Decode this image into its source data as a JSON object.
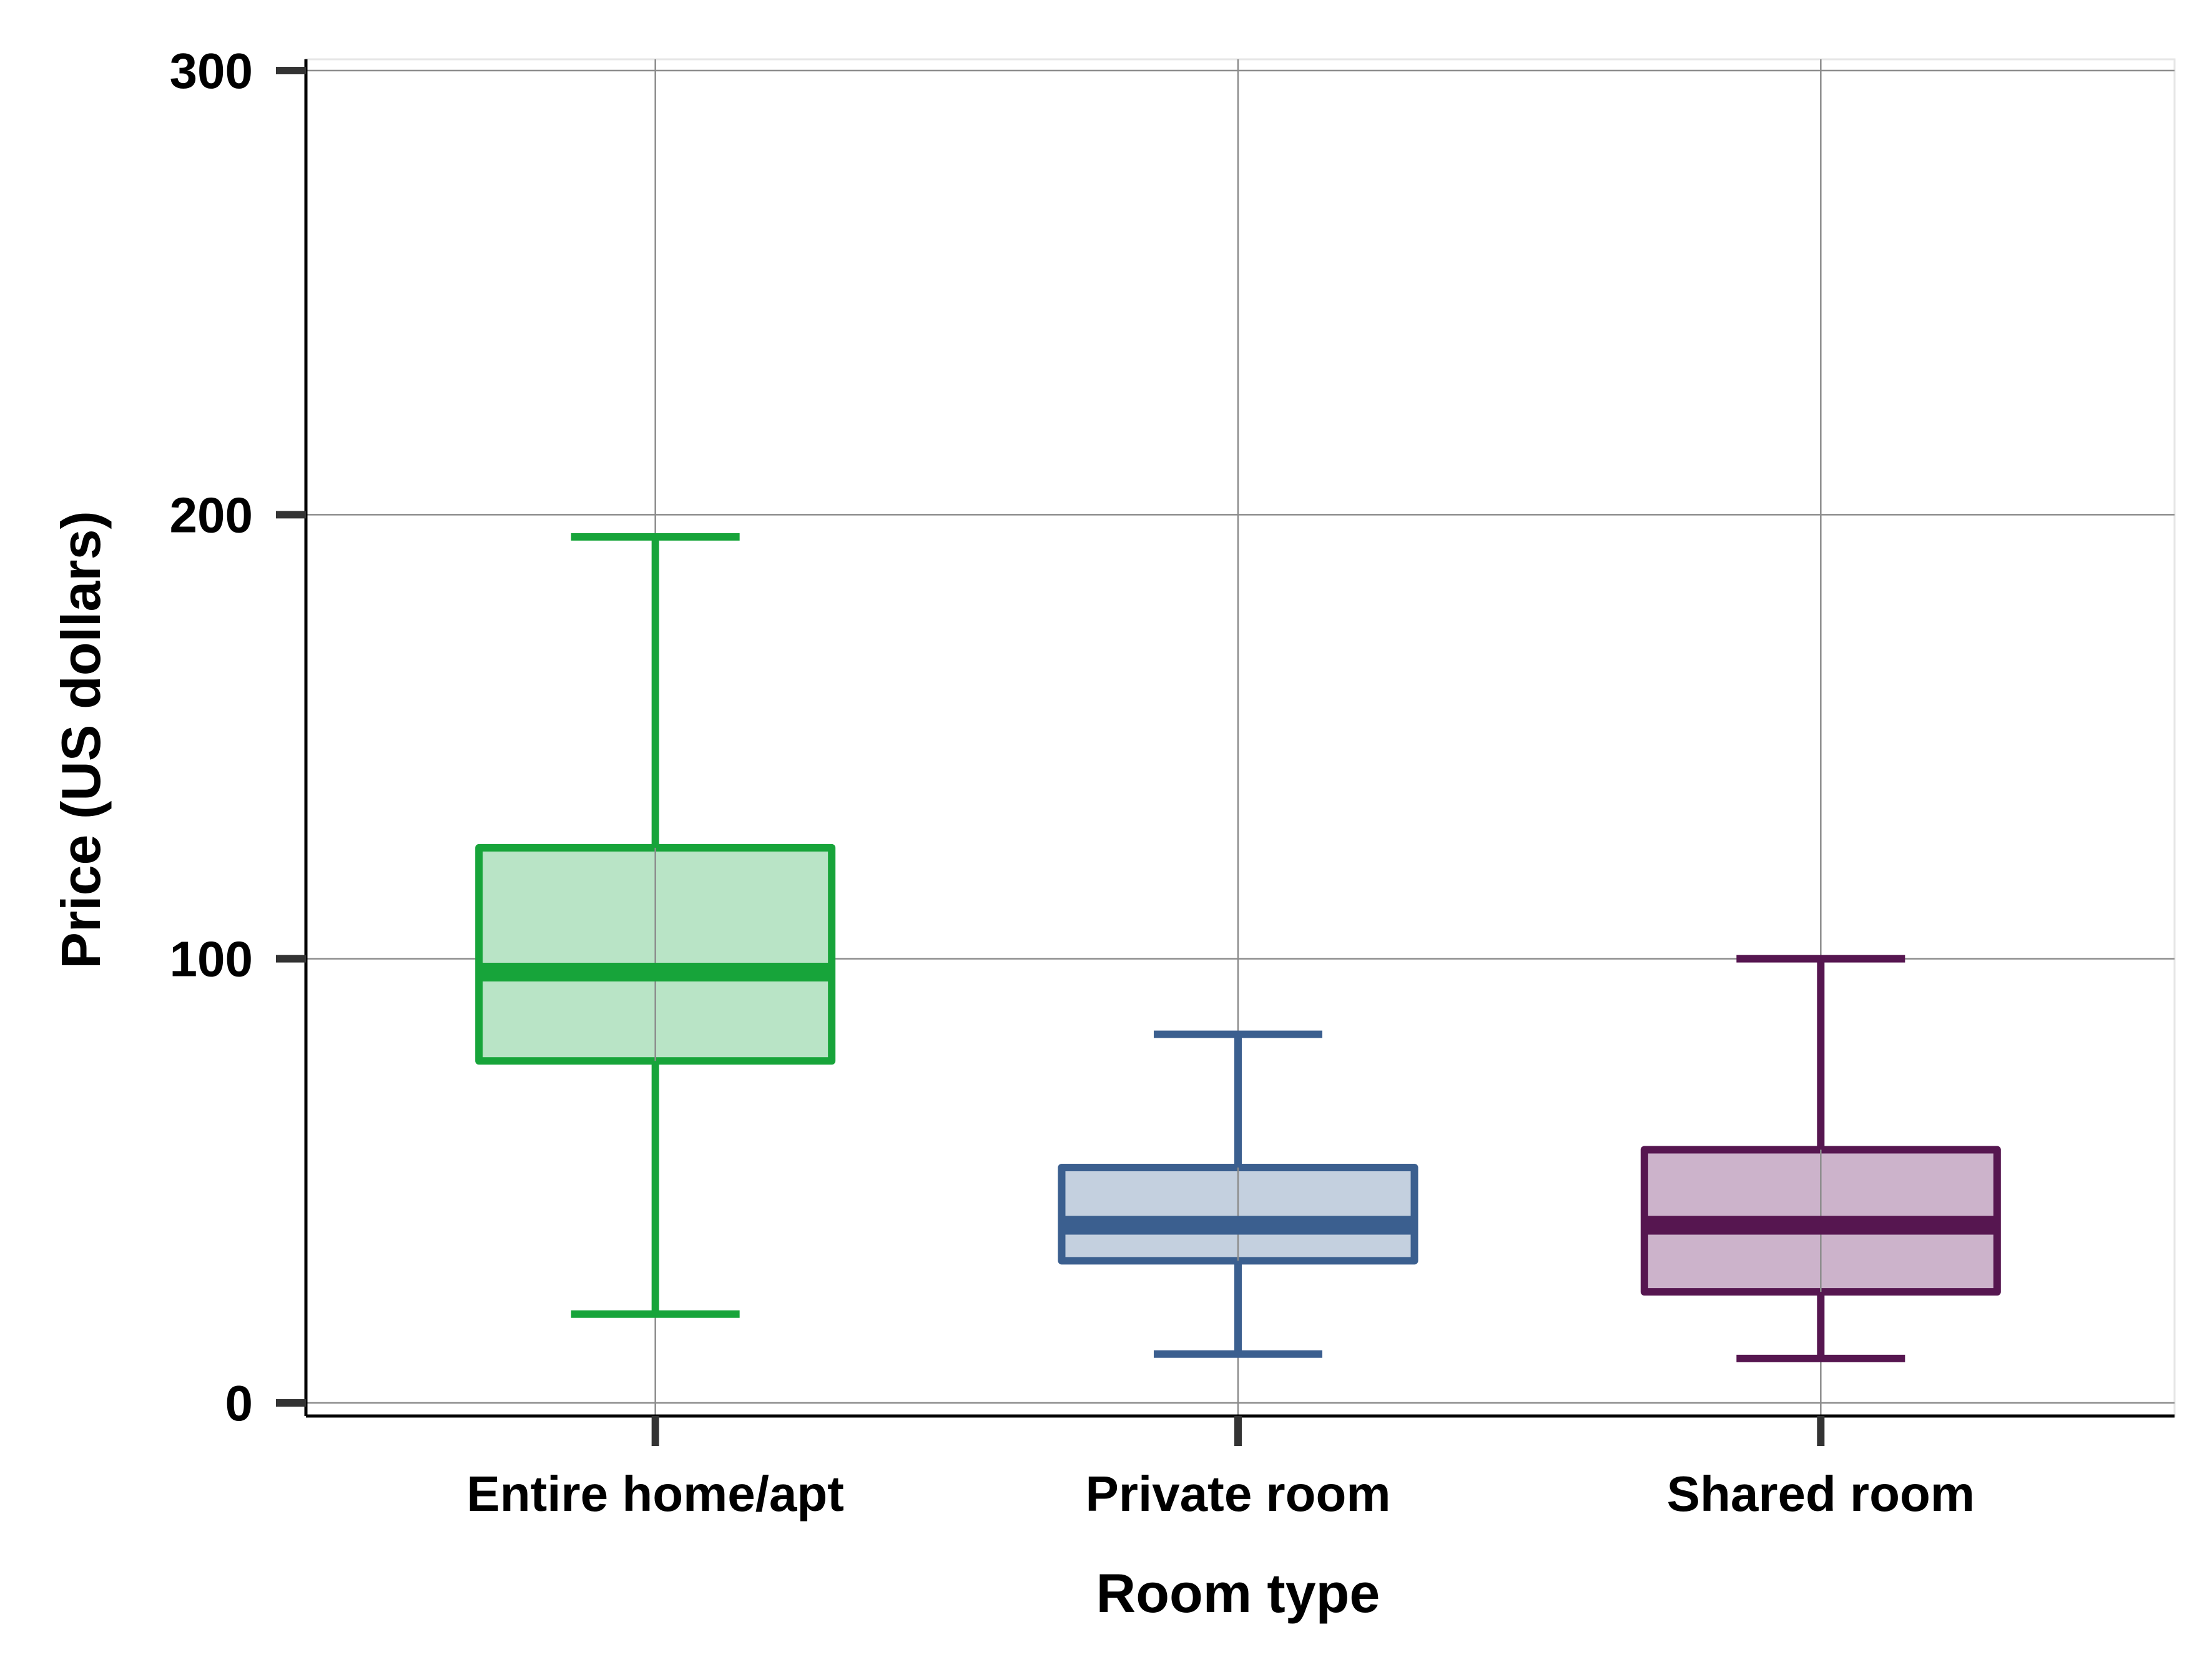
{
  "chart_data": {
    "type": "box",
    "title": "",
    "xlabel": "Room type",
    "ylabel": "Price (US dollars)",
    "ylim": [
      0,
      300
    ],
    "y_ticks": [
      0,
      100,
      200,
      300
    ],
    "grid": true,
    "categories": [
      "Entire home/apt",
      "Private room",
      "Shared room"
    ],
    "boxes": [
      {
        "category": "Entire home/apt",
        "whisker_low": 20,
        "q1": 77,
        "median": 97,
        "q3": 125,
        "whisker_high": 195,
        "color": "#17a43a",
        "fill": "#b9e4c6"
      },
      {
        "category": "Private room",
        "whisker_low": 11,
        "q1": 32,
        "median": 40,
        "q3": 53,
        "whisker_high": 83,
        "color": "#3b5f8f",
        "fill": "#c4d0df"
      },
      {
        "category": "Shared room",
        "whisker_low": 10,
        "q1": 25,
        "median": 40,
        "q3": 57,
        "whisker_high": 100,
        "color": "#561650",
        "fill": "#ccb3cb"
      }
    ]
  }
}
